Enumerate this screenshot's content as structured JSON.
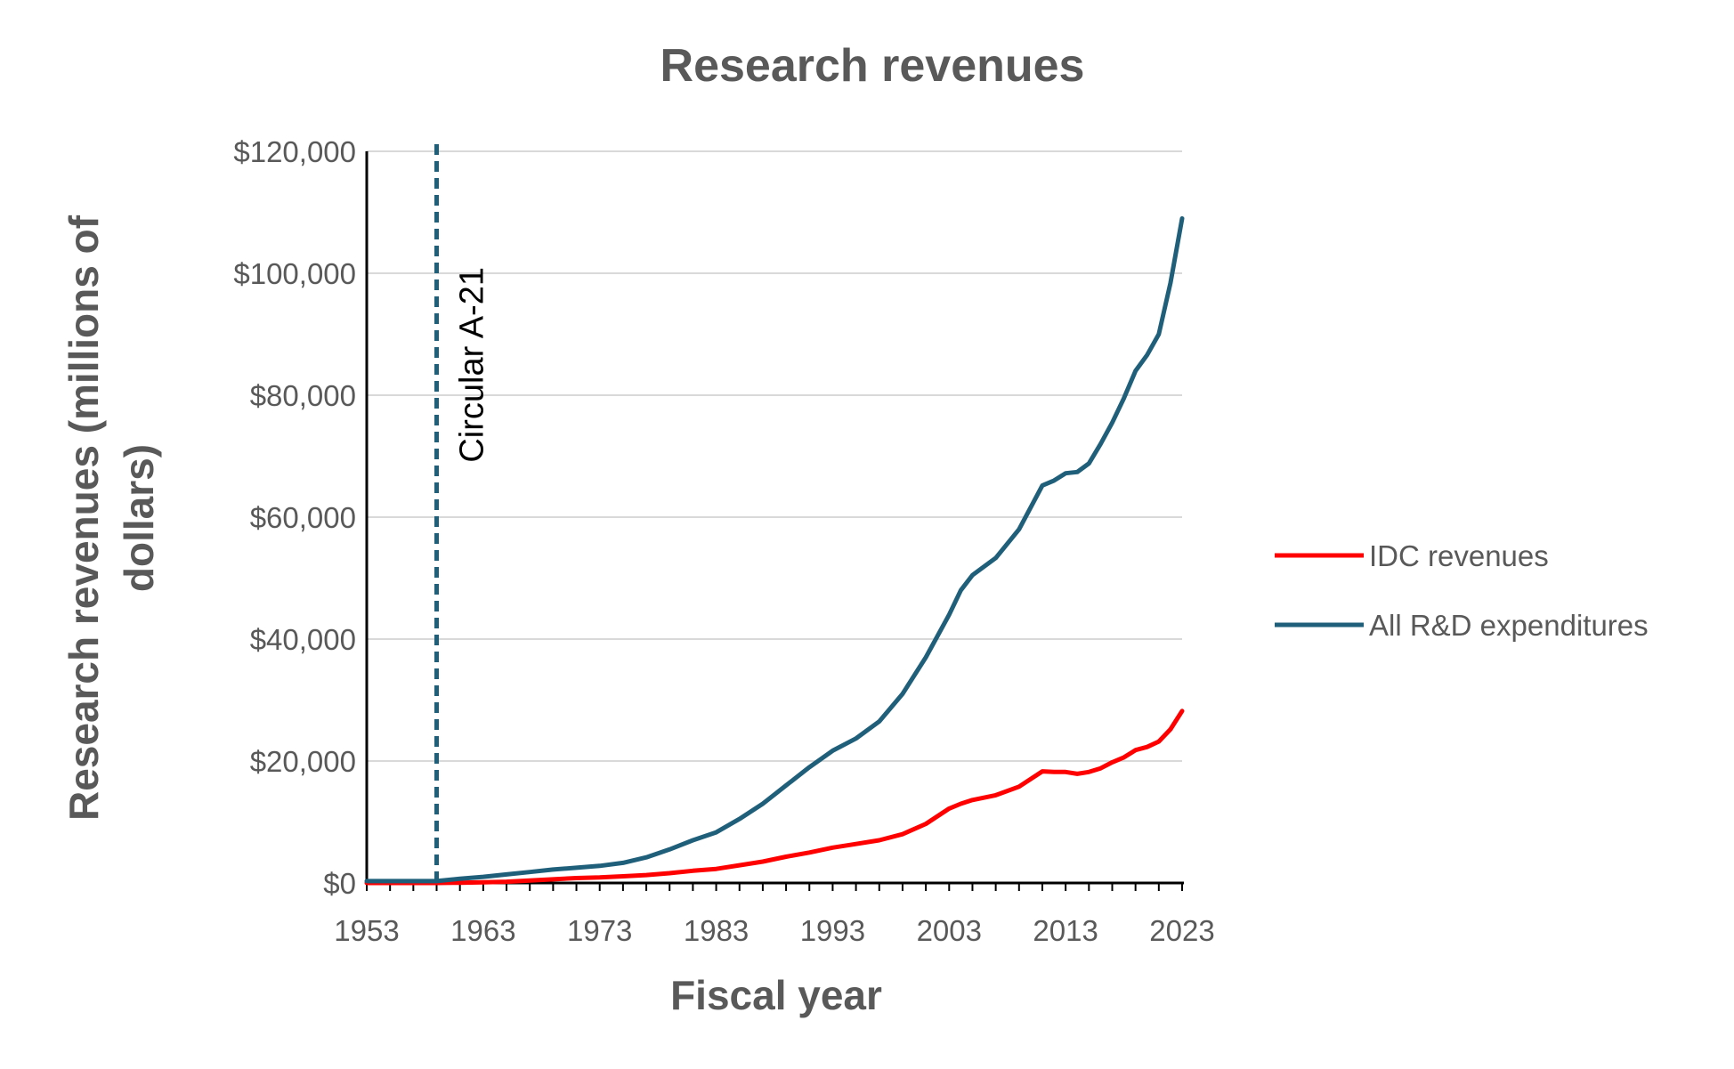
{
  "chart_data": {
    "type": "line",
    "title": "Research revenues",
    "xlabel": "Fiscal year",
    "ylabel_lines": [
      "Research revenues (millions of",
      "dollars)"
    ],
    "x_ticks": [
      "1953",
      "1963",
      "1973",
      "1983",
      "1993",
      "2003",
      "2013",
      "2023"
    ],
    "y_ticks": [
      "$0",
      "$20,000",
      "$40,000",
      "$60,000",
      "$80,000",
      "$100,000",
      "$120,000"
    ],
    "xlim": [
      1953,
      2023
    ],
    "ylim": [
      0,
      120000
    ],
    "grid": "horizontal",
    "legend_position": "right",
    "annotation": {
      "x": 1959,
      "text": "Circular A-21",
      "color": "#1F5F7A"
    },
    "x": [
      1953,
      1955,
      1957,
      1959,
      1961,
      1963,
      1965,
      1967,
      1969,
      1971,
      1973,
      1975,
      1977,
      1979,
      1981,
      1983,
      1985,
      1987,
      1989,
      1991,
      1993,
      1995,
      1997,
      1999,
      2001,
      2003,
      2004,
      2005,
      2007,
      2009,
      2011,
      2012,
      2013,
      2014,
      2015,
      2016,
      2017,
      2018,
      2019,
      2020,
      2021,
      2022,
      2023
    ],
    "series": [
      {
        "name": "IDC revenues",
        "color": "#FF0000",
        "values": [
          0,
          0,
          0,
          0,
          50,
          100,
          200,
          400,
          600,
          800,
          900,
          1100,
          1300,
          1600,
          2000,
          2300,
          2900,
          3500,
          4300,
          5000,
          5800,
          6400,
          7000,
          8000,
          9700,
          12200,
          13000,
          13600,
          14400,
          15800,
          18300,
          18200,
          18200,
          17900,
          18200,
          18800,
          19800,
          20600,
          21800,
          22300,
          23200,
          25200,
          28200
        ]
      },
      {
        "name": "All R&D expenditures",
        "color": "#1F5F7A",
        "values": [
          300,
          300,
          300,
          300,
          700,
          1000,
          1400,
          1800,
          2200,
          2500,
          2800,
          3300,
          4200,
          5500,
          7000,
          8300,
          10500,
          13000,
          16000,
          19000,
          21700,
          23700,
          26500,
          31000,
          37000,
          44000,
          48000,
          50500,
          53300,
          58000,
          65200,
          66000,
          67200,
          67400,
          68800,
          72000,
          75500,
          79500,
          84000,
          86600,
          90000,
          98400,
          109000
        ]
      }
    ]
  }
}
